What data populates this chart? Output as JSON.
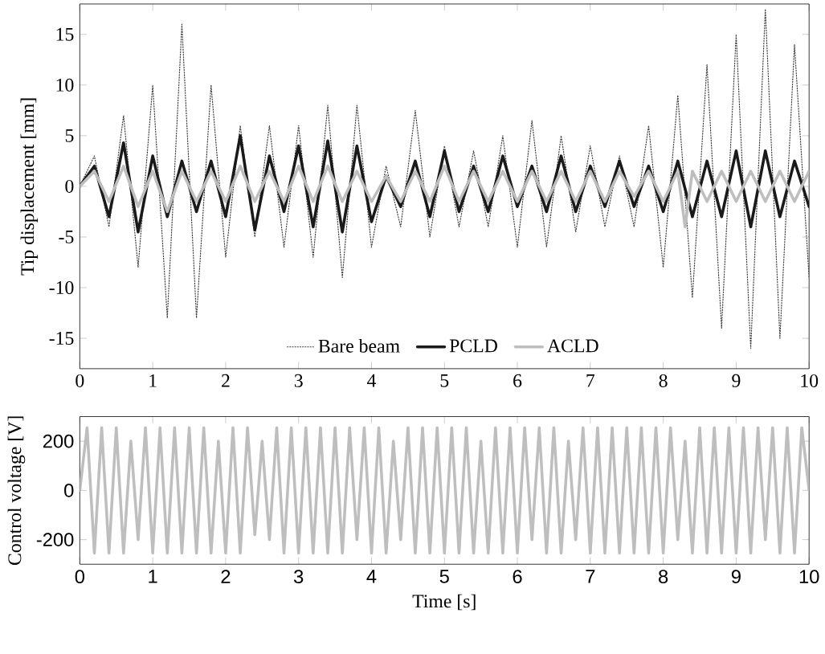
{
  "chart_data": [
    {
      "type": "line",
      "ylabel": "Tip displacement [mm]",
      "xlim": [
        0,
        10
      ],
      "ylim": [
        -18,
        18
      ],
      "xticks": [
        0,
        1,
        2,
        3,
        4,
        5,
        6,
        7,
        8,
        9,
        10
      ],
      "yticks": [
        -15,
        -10,
        -5,
        0,
        5,
        10,
        15
      ],
      "grid": false,
      "legend": "bottom",
      "series": [
        {
          "name": "Bare beam",
          "color": "#404040",
          "line_style": "dotted",
          "x": [
            0,
            0.2,
            0.4,
            0.6,
            0.8,
            1.0,
            1.2,
            1.4,
            1.6,
            1.8,
            2.0,
            2.2,
            2.4,
            2.6,
            2.8,
            3.0,
            3.2,
            3.4,
            3.6,
            3.8,
            4.0,
            4.2,
            4.4,
            4.6,
            4.8,
            5.0,
            5.2,
            5.4,
            5.6,
            5.8,
            6.0,
            6.2,
            6.4,
            6.6,
            6.8,
            7.0,
            7.2,
            7.4,
            7.6,
            7.8,
            8.0,
            8.2,
            8.4,
            8.6,
            8.8,
            9.0,
            9.2,
            9.4,
            9.6,
            9.8,
            10.0
          ],
          "values": [
            0,
            3,
            -4,
            7,
            -8,
            10,
            -13,
            16,
            -13,
            10,
            -7,
            6,
            -5,
            6,
            -6,
            6,
            -7,
            8,
            -9,
            8,
            -6,
            2,
            -4,
            7.5,
            -5,
            4,
            -4,
            3.5,
            -4,
            5,
            -6,
            6.5,
            -6,
            5,
            -4.5,
            4,
            -4,
            3,
            -4,
            6,
            -8,
            9,
            -11,
            12,
            -14,
            15,
            -16,
            17.5,
            -15,
            14,
            -9
          ]
        },
        {
          "name": "PCLD",
          "color": "#1a1a1a",
          "line_style": "solid",
          "x": [
            0,
            0.2,
            0.4,
            0.6,
            0.8,
            1.0,
            1.2,
            1.4,
            1.6,
            1.8,
            2.0,
            2.2,
            2.4,
            2.6,
            2.8,
            3.0,
            3.2,
            3.4,
            3.6,
            3.8,
            4.0,
            4.2,
            4.4,
            4.6,
            4.8,
            5.0,
            5.2,
            5.4,
            5.6,
            5.8,
            6.0,
            6.2,
            6.4,
            6.6,
            6.8,
            7.0,
            7.2,
            7.4,
            7.6,
            7.8,
            8.0,
            8.2,
            8.4,
            8.6,
            8.8,
            9.0,
            9.2,
            9.4,
            9.6,
            9.8,
            10.0
          ],
          "values": [
            0,
            2,
            -3,
            4.3,
            -4.5,
            3,
            -3,
            2.5,
            -2.5,
            2.5,
            -3,
            5,
            -4.3,
            3,
            -2.5,
            4,
            -4,
            4.5,
            -4.5,
            4,
            -3.5,
            1,
            -2,
            2.5,
            -3,
            3.5,
            -2.5,
            2,
            -2.5,
            3,
            -2,
            2,
            -2.5,
            3,
            -2.5,
            2,
            -2,
            2.5,
            -2,
            2,
            -2.5,
            2.5,
            -3,
            2.5,
            -3,
            3.5,
            -4,
            3.5,
            -3,
            2.5,
            -2
          ]
        },
        {
          "name": "ACLD",
          "color": "#bebebe",
          "line_style": "solid",
          "x": [
            0,
            0.2,
            0.4,
            0.6,
            0.8,
            1.0,
            1.2,
            1.4,
            1.6,
            1.8,
            2.0,
            2.2,
            2.4,
            2.6,
            2.8,
            3.0,
            3.2,
            3.4,
            3.6,
            3.8,
            4.0,
            4.2,
            4.4,
            4.6,
            4.8,
            5.0,
            5.2,
            5.4,
            5.6,
            5.8,
            6.0,
            6.2,
            6.4,
            6.6,
            6.8,
            7.0,
            7.2,
            7.4,
            7.6,
            7.8,
            8.0,
            8.2,
            8.3,
            8.4,
            8.6,
            8.8,
            9.0,
            9.2,
            9.4,
            9.6,
            9.8,
            10.0
          ],
          "values": [
            0,
            1.5,
            -1.5,
            2,
            -2,
            1.5,
            -2.5,
            1.5,
            -1.5,
            1.5,
            -1.5,
            2,
            -1.5,
            1.5,
            -1.5,
            2,
            -1.5,
            2,
            -1.5,
            1.5,
            -1.5,
            1,
            -1.5,
            1.5,
            -1.5,
            2,
            -1.5,
            1.5,
            -1.5,
            1.5,
            -1.5,
            1.5,
            -1.5,
            1.5,
            -1.5,
            1.5,
            -1.5,
            1.5,
            -1,
            1.5,
            -1.5,
            1.5,
            -4,
            1.5,
            -1.5,
            1.5,
            -1.5,
            1.5,
            -1.5,
            1.5,
            -1.5,
            1.5
          ]
        }
      ]
    },
    {
      "type": "line",
      "xlabel": "Time [s]",
      "ylabel": "Control voltage [V]",
      "xlim": [
        0,
        10
      ],
      "ylim": [
        -300,
        300
      ],
      "xticks": [
        0,
        1,
        2,
        3,
        4,
        5,
        6,
        7,
        8,
        9,
        10
      ],
      "yticks": [
        -200,
        0,
        200
      ],
      "grid": false,
      "legend": false,
      "series": [
        {
          "color": "#bebebe",
          "line_style": "solid",
          "x": [
            0,
            0.1,
            0.2,
            0.3,
            0.4,
            0.5,
            0.6,
            0.7,
            0.8,
            0.9,
            1.0,
            1.1,
            1.2,
            1.3,
            1.4,
            1.5,
            1.6,
            1.7,
            1.8,
            1.9,
            2.0,
            2.1,
            2.2,
            2.3,
            2.4,
            2.5,
            2.6,
            2.7,
            2.8,
            2.9,
            3.0,
            3.1,
            3.2,
            3.3,
            3.4,
            3.5,
            3.6,
            3.7,
            3.8,
            3.9,
            4.0,
            4.1,
            4.2,
            4.3,
            4.4,
            4.5,
            4.6,
            4.7,
            4.8,
            4.9,
            5.0,
            5.1,
            5.2,
            5.3,
            5.4,
            5.5,
            5.6,
            5.7,
            5.8,
            5.9,
            6.0,
            6.1,
            6.2,
            6.3,
            6.4,
            6.5,
            6.6,
            6.7,
            6.8,
            6.9,
            7.0,
            7.1,
            7.2,
            7.3,
            7.4,
            7.5,
            7.6,
            7.7,
            7.8,
            7.9,
            8.0,
            8.1,
            8.2,
            8.3,
            8.4,
            8.5,
            8.6,
            8.7,
            8.8,
            8.9,
            9.0,
            9.1,
            9.2,
            9.3,
            9.4,
            9.5,
            9.6,
            9.7,
            9.8,
            9.9,
            10.0
          ],
          "values": [
            0,
            255,
            -255,
            255,
            -255,
            255,
            -255,
            200,
            -200,
            255,
            -255,
            255,
            -255,
            255,
            -255,
            255,
            -255,
            255,
            -255,
            200,
            -255,
            255,
            -255,
            255,
            -180,
            200,
            -200,
            255,
            -255,
            255,
            -255,
            255,
            -255,
            255,
            -255,
            255,
            -255,
            255,
            -200,
            255,
            -255,
            255,
            -255,
            200,
            -200,
            255,
            -255,
            255,
            -255,
            255,
            -255,
            255,
            -255,
            255,
            -255,
            200,
            -255,
            255,
            -255,
            255,
            -255,
            255,
            -200,
            255,
            -255,
            255,
            -255,
            200,
            -200,
            255,
            -255,
            255,
            -255,
            255,
            -255,
            255,
            -255,
            255,
            -255,
            255,
            -255,
            255,
            -200,
            200,
            -255,
            255,
            -255,
            255,
            -255,
            255,
            -255,
            255,
            -255,
            255,
            -200,
            255,
            -255,
            255,
            -255,
            255,
            0
          ]
        }
      ]
    }
  ]
}
